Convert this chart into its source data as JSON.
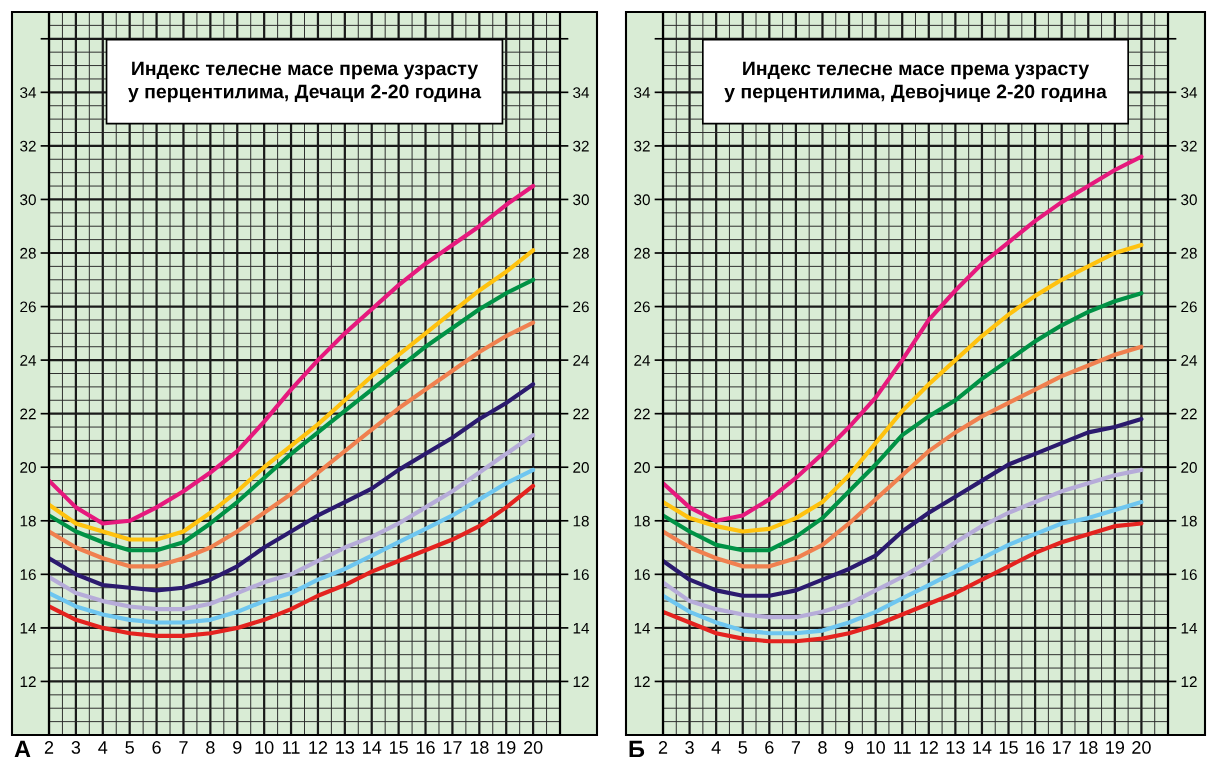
{
  "chart_data": [
    {
      "type": "line",
      "title": "Индекс телесне масе према узрасту\nу перцентилима, Дечаци 2-20 година",
      "annotations": [
        "А"
      ],
      "grid": true,
      "x": [
        2,
        3,
        4,
        5,
        6,
        7,
        8,
        9,
        10,
        11,
        12,
        13,
        14,
        15,
        16,
        17,
        18,
        19,
        20
      ],
      "xlim": [
        2,
        21
      ],
      "xticks": [
        2,
        3,
        4,
        5,
        6,
        7,
        8,
        9,
        10,
        11,
        12,
        13,
        14,
        15,
        16,
        17,
        18,
        19,
        20
      ],
      "ylim": [
        10,
        37
      ],
      "yticks": [
        12,
        14,
        16,
        18,
        20,
        22,
        24,
        26,
        28,
        30,
        32,
        34,
        {
          "value": 36,
          "label": null
        }
      ],
      "y2lim": [
        10,
        37
      ],
      "y2ticks": [
        12,
        14,
        16,
        18,
        20,
        22,
        24,
        26,
        28,
        30,
        32,
        34,
        {
          "value": 36,
          "label": null
        }
      ],
      "series": [
        {
          "color": "#e6197d",
          "values": [
            19.5,
            18.5,
            17.9,
            18.0,
            18.5,
            19.1,
            19.8,
            20.6,
            21.7,
            22.9,
            24.0,
            25.0,
            25.9,
            26.8,
            27.6,
            28.3,
            29.0,
            29.8,
            30.5
          ]
        },
        {
          "color": "#ffc20e",
          "values": [
            18.6,
            17.9,
            17.6,
            17.3,
            17.3,
            17.6,
            18.3,
            19.1,
            20.0,
            20.8,
            21.6,
            22.5,
            23.4,
            24.2,
            25.0,
            25.8,
            26.6,
            27.3,
            28.1
          ]
        },
        {
          "color": "#009245",
          "values": [
            18.2,
            17.6,
            17.2,
            16.9,
            16.9,
            17.2,
            17.9,
            18.7,
            19.6,
            20.5,
            21.3,
            22.1,
            22.9,
            23.7,
            24.5,
            25.2,
            25.9,
            26.5,
            27.0
          ]
        },
        {
          "color": "#f0804f",
          "values": [
            17.6,
            17.0,
            16.6,
            16.3,
            16.3,
            16.6,
            17.0,
            17.6,
            18.3,
            19.0,
            19.8,
            20.6,
            21.4,
            22.2,
            22.9,
            23.6,
            24.3,
            24.9,
            25.4
          ]
        },
        {
          "color": "#2b1a6e",
          "values": [
            16.6,
            16.0,
            15.6,
            15.5,
            15.4,
            15.5,
            15.8,
            16.3,
            17.0,
            17.6,
            18.2,
            18.7,
            19.2,
            19.9,
            20.5,
            21.1,
            21.8,
            22.4,
            23.1
          ]
        },
        {
          "color": "#b6acd9",
          "values": [
            15.9,
            15.3,
            15.0,
            14.8,
            14.7,
            14.7,
            14.9,
            15.3,
            15.7,
            16.0,
            16.5,
            17.0,
            17.4,
            17.9,
            18.5,
            19.1,
            19.8,
            20.5,
            21.2
          ]
        },
        {
          "color": "#6ec6f0",
          "values": [
            15.3,
            14.8,
            14.5,
            14.3,
            14.2,
            14.2,
            14.3,
            14.6,
            15.0,
            15.3,
            15.8,
            16.2,
            16.7,
            17.2,
            17.7,
            18.2,
            18.8,
            19.4,
            19.9
          ]
        },
        {
          "color": "#e4231f",
          "values": [
            14.8,
            14.3,
            14.0,
            13.8,
            13.7,
            13.7,
            13.8,
            14.0,
            14.3,
            14.7,
            15.2,
            15.6,
            16.1,
            16.5,
            16.9,
            17.3,
            17.8,
            18.5,
            19.3
          ]
        }
      ]
    },
    {
      "type": "line",
      "title": "Индекс телесне масе према узрасту\nу перцентилима, Девојчице 2-20 година",
      "annotations": [
        "Б"
      ],
      "grid": true,
      "x": [
        2,
        3,
        4,
        5,
        6,
        7,
        8,
        9,
        10,
        11,
        12,
        13,
        14,
        15,
        16,
        17,
        18,
        19,
        20
      ],
      "xlim": [
        2,
        21
      ],
      "xticks": [
        2,
        3,
        4,
        5,
        6,
        7,
        8,
        9,
        10,
        11,
        12,
        13,
        14,
        15,
        16,
        17,
        18,
        19,
        20
      ],
      "ylim": [
        10,
        37
      ],
      "yticks": [
        12,
        14,
        16,
        18,
        20,
        22,
        24,
        26,
        28,
        30,
        32,
        34,
        {
          "value": 36,
          "label": null
        }
      ],
      "y2lim": [
        10,
        37
      ],
      "y2ticks": [
        12,
        14,
        16,
        18,
        20,
        22,
        24,
        26,
        28,
        30,
        32,
        34,
        {
          "value": 36,
          "label": null
        }
      ],
      "series": [
        {
          "color": "#e6197d",
          "values": [
            19.4,
            18.5,
            18.0,
            18.2,
            18.8,
            19.6,
            20.5,
            21.5,
            22.6,
            24.0,
            25.5,
            26.6,
            27.6,
            28.4,
            29.2,
            29.9,
            30.5,
            31.1,
            31.6
          ]
        },
        {
          "color": "#ffc20e",
          "values": [
            18.7,
            18.1,
            17.8,
            17.6,
            17.7,
            18.1,
            18.7,
            19.7,
            20.9,
            22.1,
            23.1,
            24.0,
            24.9,
            25.7,
            26.4,
            27.0,
            27.5,
            28.0,
            28.3
          ]
        },
        {
          "color": "#009245",
          "values": [
            18.2,
            17.6,
            17.1,
            16.9,
            16.9,
            17.4,
            18.1,
            19.1,
            20.1,
            21.2,
            21.9,
            22.5,
            23.3,
            24.0,
            24.7,
            25.3,
            25.8,
            26.2,
            26.5
          ]
        },
        {
          "color": "#f0804f",
          "values": [
            17.6,
            17.0,
            16.6,
            16.3,
            16.3,
            16.6,
            17.1,
            17.9,
            18.8,
            19.7,
            20.6,
            21.3,
            21.9,
            22.4,
            22.9,
            23.4,
            23.8,
            24.2,
            24.5
          ]
        },
        {
          "color": "#2b1a6e",
          "values": [
            16.5,
            15.8,
            15.4,
            15.2,
            15.2,
            15.4,
            15.8,
            16.2,
            16.7,
            17.6,
            18.3,
            18.9,
            19.5,
            20.1,
            20.5,
            20.9,
            21.3,
            21.5,
            21.8
          ]
        },
        {
          "color": "#b6acd9",
          "values": [
            15.7,
            15.0,
            14.7,
            14.5,
            14.4,
            14.4,
            14.6,
            14.9,
            15.4,
            15.9,
            16.5,
            17.2,
            17.8,
            18.3,
            18.7,
            19.1,
            19.4,
            19.7,
            19.9
          ]
        },
        {
          "color": "#6ec6f0",
          "values": [
            15.2,
            14.6,
            14.2,
            13.9,
            13.8,
            13.8,
            13.9,
            14.2,
            14.6,
            15.1,
            15.6,
            16.1,
            16.6,
            17.1,
            17.5,
            17.9,
            18.1,
            18.4,
            18.7
          ]
        },
        {
          "color": "#e4231f",
          "values": [
            14.6,
            14.2,
            13.8,
            13.6,
            13.5,
            13.5,
            13.6,
            13.8,
            14.1,
            14.5,
            14.9,
            15.3,
            15.8,
            16.3,
            16.8,
            17.2,
            17.5,
            17.8,
            17.9
          ]
        }
      ]
    }
  ]
}
